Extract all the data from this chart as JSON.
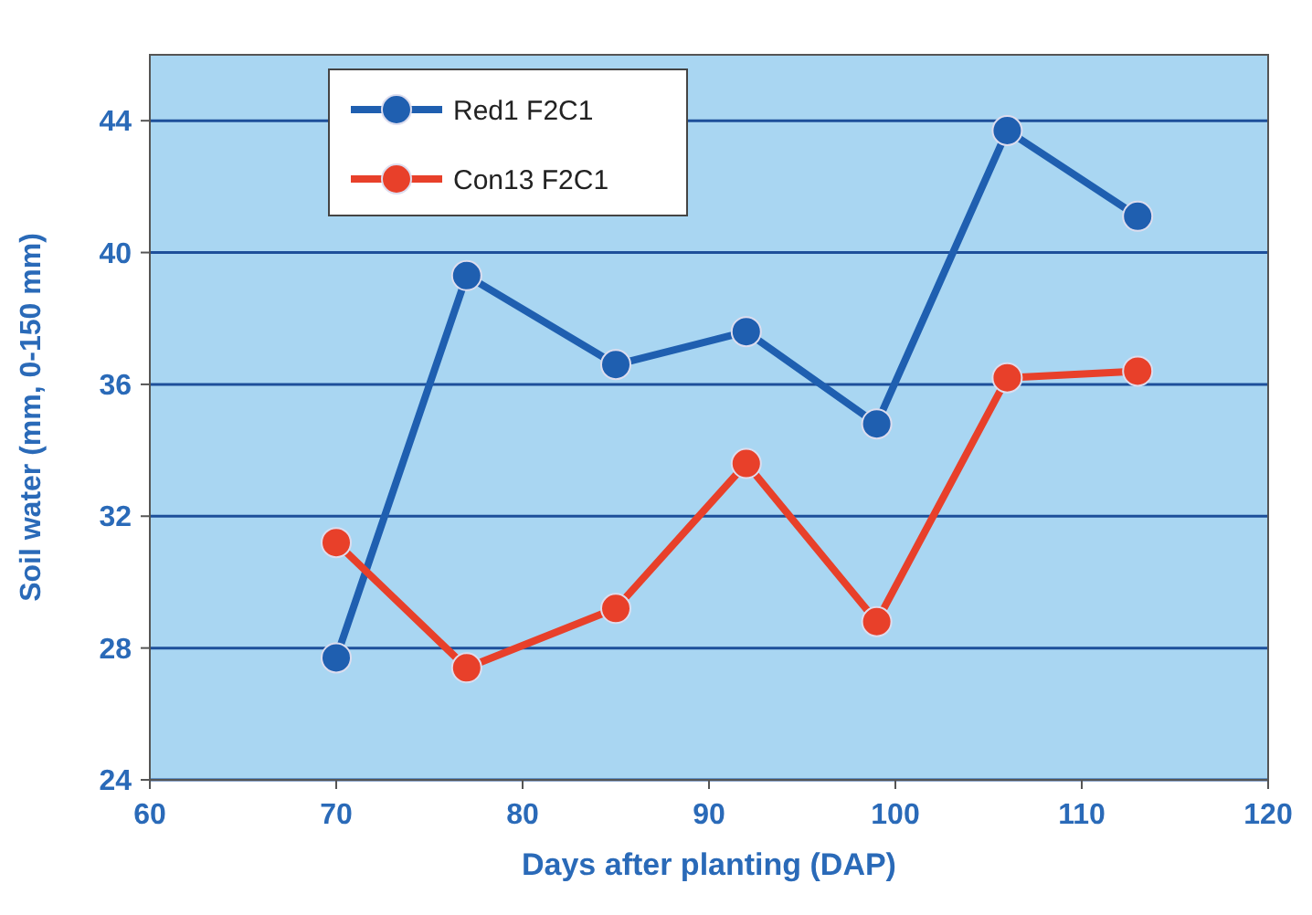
{
  "chart_data": {
    "type": "line",
    "xlabel": "Days after planting (DAP)",
    "ylabel": "Soil water (mm, 0-150 mm)",
    "x": [
      70,
      77,
      85,
      92,
      99,
      106,
      113
    ],
    "series": [
      {
        "name": "Red1 F2C1",
        "color": "#1f5fb0",
        "values": [
          27.7,
          39.3,
          36.6,
          37.6,
          34.8,
          43.7,
          41.1
        ]
      },
      {
        "name": "Con13 F2C1",
        "color": "#e8402a",
        "values": [
          31.2,
          27.4,
          29.2,
          33.6,
          28.8,
          36.2,
          36.4
        ]
      }
    ],
    "xlim": [
      60,
      120
    ],
    "xticks": [
      60,
      70,
      80,
      90,
      100,
      110,
      120
    ],
    "ylim": [
      24,
      46
    ],
    "yticks": [
      24,
      28,
      32,
      36,
      40,
      44
    ],
    "grid": "y",
    "legend": "top left",
    "marker": "circle",
    "line_style": "solid"
  }
}
